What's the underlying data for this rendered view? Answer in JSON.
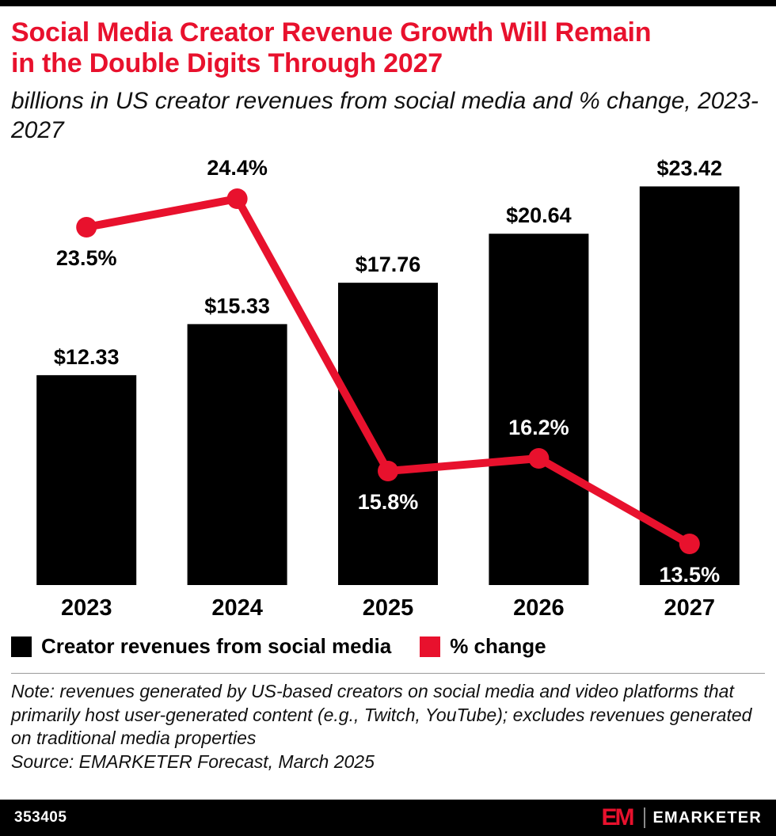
{
  "header": {
    "title_lines": [
      "Social Media Creator Revenue Growth Will Remain",
      "in the Double Digits Through 2027"
    ],
    "subtitle": "billions in US creator revenues from social media and % change, 2023-2027",
    "accent_color": "#e8112d"
  },
  "chart_data": {
    "type": "bar",
    "categories": [
      "2023",
      "2024",
      "2025",
      "2026",
      "2027"
    ],
    "series": [
      {
        "name": "Creator revenues from social media",
        "type": "bar",
        "color": "#000000",
        "values": [
          12.33,
          15.33,
          17.76,
          20.64,
          23.42
        ],
        "labels": [
          "$12.33",
          "$15.33",
          "$17.76",
          "$20.64",
          "$23.42"
        ]
      },
      {
        "name": "% change",
        "type": "line",
        "color": "#e8112d",
        "values": [
          23.5,
          24.4,
          15.8,
          16.2,
          13.5
        ],
        "labels": [
          "23.5%",
          "24.4%",
          "15.8%",
          "16.2%",
          "13.5%"
        ],
        "label_placement": [
          {
            "pos": "below",
            "color": "#000000"
          },
          {
            "pos": "above",
            "color": "#000000"
          },
          {
            "pos": "below",
            "color": "#ffffff"
          },
          {
            "pos": "above",
            "color": "#ffffff"
          },
          {
            "pos": "below",
            "color": "#ffffff"
          }
        ]
      }
    ],
    "title": "Social Media Creator Revenue Growth Will Remain in the Double Digits Through 2027",
    "xlabel": "",
    "ylabel": "billions in US creator revenues from social media and % change",
    "grid": false,
    "legend_position": "bottom"
  },
  "legend": [
    {
      "label": "Creator revenues from social media",
      "color": "#000000"
    },
    {
      "label": "% change",
      "color": "#e8112d"
    }
  ],
  "notes": {
    "note": "Note: revenues generated by US-based creators on social media and video platforms that primarily host user-generated content (e.g., Twitch, YouTube); excludes revenues generated on traditional media properties",
    "source": "Source: EMARKETER Forecast, March 2025"
  },
  "footer": {
    "chart_id": "353405",
    "logo_em": "EM",
    "brand": "EMARKETER"
  }
}
